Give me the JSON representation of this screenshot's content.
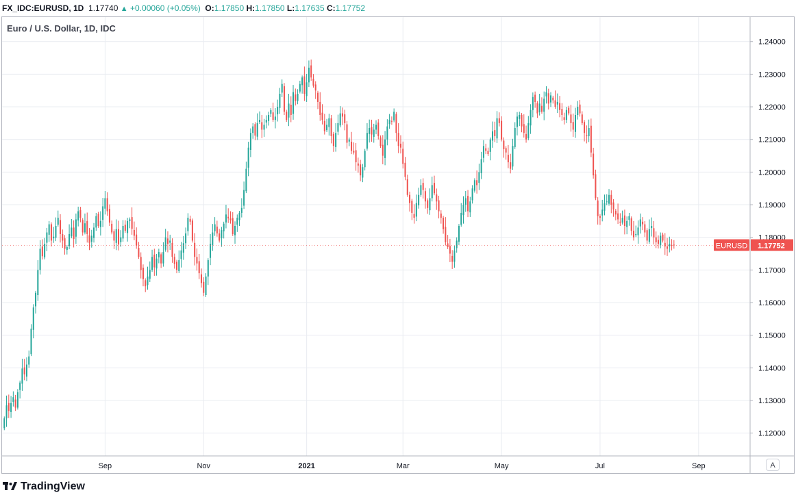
{
  "header": {
    "symbol": "FX_IDC:EURUSD, 1D",
    "price": "1.17740",
    "change": "+0.00060 (+0.05%)",
    "o_label": "O:",
    "o_value": "1.17850",
    "h_label": "H:",
    "h_value": "1.17850",
    "l_label": "L:",
    "l_value": "1.17635",
    "c_label": "C:",
    "c_value": "1.17752"
  },
  "brand": {
    "name": "TradingView"
  },
  "auto_label": "A",
  "colors": {
    "up": "#26a69a",
    "down": "#ef5350",
    "grid": "#e9ecf1",
    "axis_text": "#131722",
    "badge": "#ef5350"
  },
  "chart_data": {
    "type": "candlestick",
    "title": "Euro / U.S. Dollar, 1D, IDC",
    "symbol_label": "EURUSD",
    "last_price_label": "1.17752",
    "last_price": 1.17752,
    "ylim": [
      1.113,
      1.2475
    ],
    "y_ticks": [
      {
        "value": 1.12,
        "label": "1.12000"
      },
      {
        "value": 1.13,
        "label": "1.13000"
      },
      {
        "value": 1.14,
        "label": "1.14000"
      },
      {
        "value": 1.15,
        "label": "1.15000"
      },
      {
        "value": 1.16,
        "label": "1.16000"
      },
      {
        "value": 1.17,
        "label": "1.17000"
      },
      {
        "value": 1.18,
        "label": "1.18000"
      },
      {
        "value": 1.19,
        "label": "1.19000"
      },
      {
        "value": 1.2,
        "label": "1.20000"
      },
      {
        "value": 1.21,
        "label": "1.21000"
      },
      {
        "value": 1.22,
        "label": "1.22000"
      },
      {
        "value": 1.23,
        "label": "1.23000"
      },
      {
        "value": 1.24,
        "label": "1.24000"
      }
    ],
    "x_ticks": [
      {
        "index": 45,
        "label": "Sep",
        "bold": false
      },
      {
        "index": 89,
        "label": "Nov",
        "bold": false
      },
      {
        "index": 135,
        "label": "2021",
        "bold": true
      },
      {
        "index": 178,
        "label": "Mar",
        "bold": false
      },
      {
        "index": 222,
        "label": "May",
        "bold": false
      },
      {
        "index": 266,
        "label": "Jul",
        "bold": false
      },
      {
        "index": 310,
        "label": "Sep",
        "bold": false
      }
    ],
    "x_range": [
      -1,
      333
    ],
    "closes": [
      1.1245,
      1.1285,
      1.1268,
      1.1292,
      1.131,
      1.1278,
      1.1325,
      1.1355,
      1.1398,
      1.138,
      1.141,
      1.1435,
      1.152,
      1.1585,
      1.163,
      1.17,
      1.1765,
      1.1742,
      1.178,
      1.1815,
      1.184,
      1.179,
      1.1802,
      1.1835,
      1.186,
      1.181,
      1.179,
      1.1765,
      1.177,
      1.181,
      1.183,
      1.1795,
      1.1855,
      1.188,
      1.186,
      1.1815,
      1.1843,
      1.181,
      1.1783,
      1.1805,
      1.183,
      1.1865,
      1.1835,
      1.185,
      1.1895,
      1.192,
      1.188,
      1.1845,
      1.1815,
      1.179,
      1.1825,
      1.1778,
      1.18,
      1.1835,
      1.182,
      1.185,
      1.1855,
      1.1826,
      1.1805,
      1.1775,
      1.174,
      1.17,
      1.1672,
      1.165,
      1.168,
      1.17,
      1.174,
      1.1708,
      1.1735,
      1.1755,
      1.172,
      1.1755,
      1.18,
      1.178,
      1.179,
      1.174,
      1.1718,
      1.17,
      1.173,
      1.176,
      1.1782,
      1.1812,
      1.186,
      1.1848,
      1.179,
      1.174,
      1.172,
      1.169,
      1.166,
      1.163,
      1.168,
      1.173,
      1.178,
      1.1815,
      1.184,
      1.1812,
      1.179,
      1.1822,
      1.1842,
      1.187,
      1.1858,
      1.1852,
      1.181,
      1.1835,
      1.186,
      1.1875,
      1.189,
      1.1945,
      1.201,
      1.2075,
      1.212,
      1.214,
      1.2112,
      1.215,
      1.216,
      1.213,
      1.2145,
      1.216,
      1.2175,
      1.219,
      1.216,
      1.217,
      1.22,
      1.224,
      1.227,
      1.2185,
      1.216,
      1.221,
      1.2175,
      1.2245,
      1.2218,
      1.224,
      1.227,
      1.229,
      1.224,
      1.2275,
      1.232,
      1.229,
      1.2265,
      1.225,
      1.2215,
      1.2175,
      1.216,
      1.2125,
      1.2145,
      1.2165,
      1.211,
      1.208,
      1.212,
      1.215,
      1.218,
      1.217,
      1.215,
      1.209,
      1.21,
      1.2065,
      1.206,
      1.203,
      1.202,
      1.199,
      1.2015,
      1.2065,
      1.212,
      1.2135,
      1.2115,
      1.213,
      1.2145,
      1.211,
      1.208,
      1.205,
      1.21,
      1.214,
      1.216,
      1.2155,
      1.2185,
      1.212,
      1.208,
      1.2075,
      1.2025,
      1.1985,
      1.193,
      1.1905,
      1.1875,
      1.186,
      1.1905,
      1.193,
      1.196,
      1.1945,
      1.191,
      1.189,
      1.192,
      1.196,
      1.1935,
      1.191,
      1.188,
      1.186,
      1.1825,
      1.1785,
      1.177,
      1.175,
      1.1725,
      1.176,
      1.179,
      1.1835,
      1.1875,
      1.19,
      1.192,
      1.188,
      1.191,
      1.195,
      1.1975,
      1.196,
      1.2,
      1.204,
      1.208,
      1.2065,
      1.2055,
      1.21,
      1.2125,
      1.211,
      1.2165,
      1.215,
      1.21,
      1.207,
      1.206,
      1.203,
      1.201,
      1.208,
      1.2135,
      1.217,
      1.2175,
      1.214,
      1.212,
      1.21,
      1.215,
      1.219,
      1.223,
      1.2215,
      1.218,
      1.221,
      1.2185,
      1.2225,
      1.2245,
      1.221,
      1.2235,
      1.222,
      1.22,
      1.2215,
      1.219,
      1.2175,
      1.216,
      1.219,
      1.218,
      1.215,
      1.213,
      1.2175,
      1.22,
      1.218,
      1.215,
      1.212,
      1.211,
      1.2135,
      1.206,
      1.199,
      1.192,
      1.1865,
      1.186,
      1.1885,
      1.1905,
      1.191,
      1.193,
      1.19,
      1.1885,
      1.187,
      1.1855,
      1.1845,
      1.186,
      1.1835,
      1.185,
      1.1865,
      1.182,
      1.18,
      1.181,
      1.183,
      1.1855,
      1.184,
      1.1815,
      1.179,
      1.1825,
      1.1835,
      1.18,
      1.1785,
      1.178,
      1.1805,
      1.179,
      1.1772,
      1.1765,
      1.178,
      1.1774,
      1.17752
    ]
  }
}
